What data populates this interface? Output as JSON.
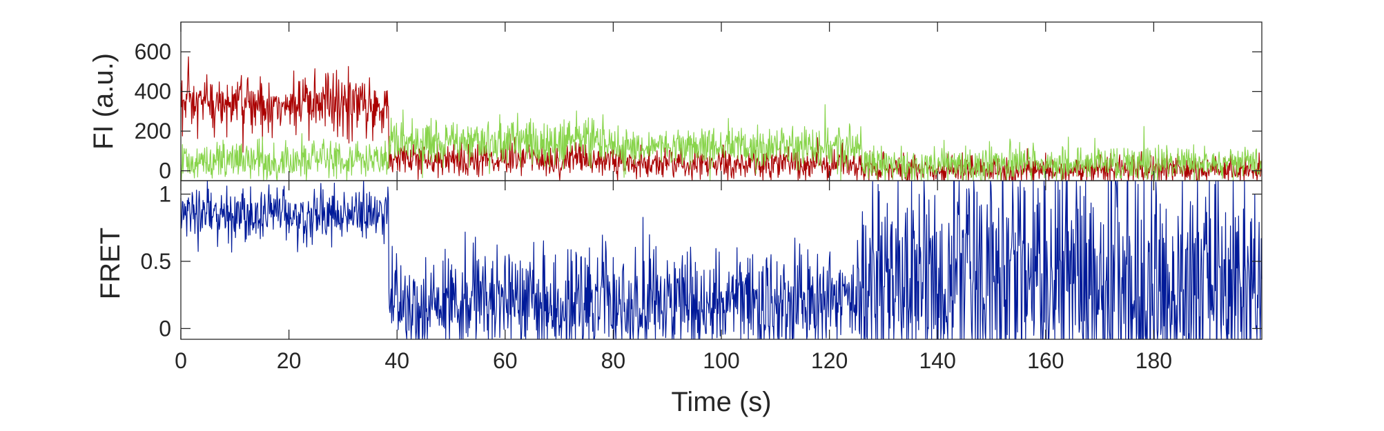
{
  "chart_data": [
    {
      "type": "line",
      "panel": "intensity",
      "title": "",
      "xlabel": "",
      "ylabel": "FI (a.u.)",
      "xlim": [
        0,
        200
      ],
      "ylim": [
        -50,
        750
      ],
      "yticks": [
        0,
        200,
        400,
        600
      ],
      "ytick_labels": [
        "0",
        "200",
        "400",
        "600"
      ],
      "grid": false,
      "frame_rate_hz": 10,
      "series": [
        {
          "color": "#aa0000",
          "segments": [
            {
              "x": [
                0,
                38.5
              ],
              "mean": 330,
              "noise": 80
            },
            {
              "x": [
                38.5,
                80
              ],
              "mean": 60,
              "noise": 45
            },
            {
              "x": [
                80,
                126
              ],
              "mean": 35,
              "noise": 40
            },
            {
              "x": [
                126,
                200
              ],
              "mean": 5,
              "noise": 35
            }
          ]
        },
        {
          "color": "#88d44b",
          "segments": [
            {
              "x": [
                0,
                38.5
              ],
              "mean": 50,
              "noise": 50
            },
            {
              "x": [
                38.5,
                80
              ],
              "mean": 145,
              "noise": 60
            },
            {
              "x": [
                80,
                126
              ],
              "mean": 120,
              "noise": 55
            },
            {
              "x": [
                126,
                200
              ],
              "mean": 35,
              "noise": 45
            }
          ]
        }
      ]
    },
    {
      "type": "line",
      "panel": "fret",
      "title": "",
      "xlabel": "Time (s)",
      "ylabel": "FRET",
      "xlim": [
        0,
        200
      ],
      "ylim": [
        -0.08,
        1.1
      ],
      "yticks": [
        0,
        0.5,
        1
      ],
      "ytick_labels": [
        "0",
        "0.5",
        "1"
      ],
      "xticks": [
        0,
        20,
        40,
        60,
        80,
        100,
        120,
        140,
        160,
        180
      ],
      "xtick_labels": [
        "0",
        "20",
        "40",
        "60",
        "80",
        "100",
        "120",
        "140",
        "160",
        "180"
      ],
      "grid": false,
      "series": [
        {
          "color": "#001a99",
          "segments": [
            {
              "x": [
                0,
                38.5
              ],
              "mean": 0.85,
              "noise": 0.1
            },
            {
              "x": [
                38.5,
                126
              ],
              "mean": 0.18,
              "noise": 0.2
            },
            {
              "x": [
                126,
                200
              ],
              "mean": 0.35,
              "noise": 0.45
            }
          ]
        }
      ]
    }
  ]
}
